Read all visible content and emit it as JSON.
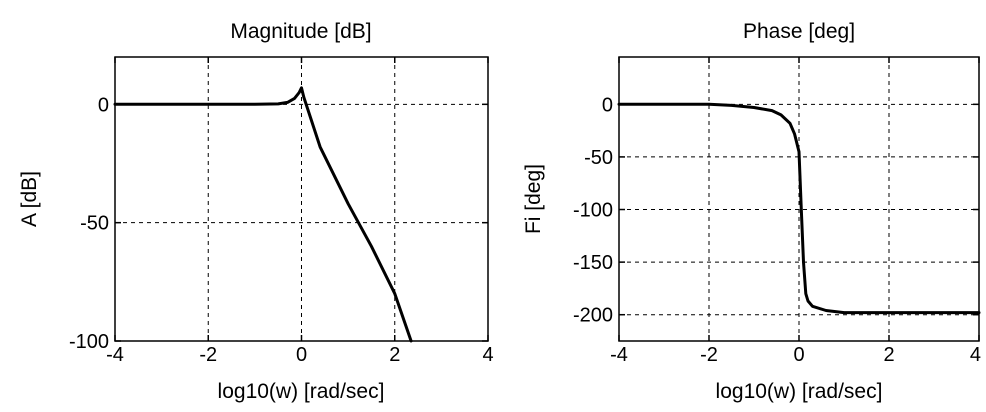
{
  "chart_data": [
    {
      "type": "line",
      "title": "Magnitude [dB]",
      "xlabel": "log10(w) [rad/sec]",
      "ylabel": "A [dB]",
      "xlim": [
        -4,
        4
      ],
      "ylim": [
        -100,
        20
      ],
      "xticks": [
        -4,
        -2,
        0,
        2,
        4
      ],
      "yticks": [
        0,
        -50,
        -100
      ],
      "grid": true,
      "series": [
        {
          "x": [
            -4,
            -2,
            -1,
            -0.5,
            -0.3,
            -0.15,
            -0.05,
            0,
            0.05,
            0.2,
            0.4,
            0.7,
            1.0,
            1.5,
            2.0,
            2.35
          ],
          "y": [
            0,
            0,
            0,
            0.2,
            0.8,
            2.5,
            5,
            7,
            3,
            -6,
            -18,
            -30,
            -42,
            -60,
            -80,
            -100
          ]
        }
      ]
    },
    {
      "type": "line",
      "title": "Phase [deg]",
      "xlabel": "log10(w) [rad/sec]",
      "ylabel": "Fi [deg]",
      "xlim": [
        -4,
        4
      ],
      "ylim": [
        -225,
        45
      ],
      "xticks": [
        -4,
        -2,
        0,
        2,
        4
      ],
      "yticks": [
        0,
        -50,
        -100,
        -150,
        -200
      ],
      "grid": true,
      "series": [
        {
          "x": [
            -4,
            -2,
            -1.5,
            -1,
            -0.6,
            -0.4,
            -0.2,
            -0.1,
            0,
            0.05,
            0.1,
            0.15,
            0.2,
            0.3,
            0.6,
            1.0,
            2,
            4
          ],
          "y": [
            0,
            0,
            -1,
            -3,
            -6,
            -10,
            -18,
            -28,
            -45,
            -100,
            -150,
            -180,
            -187,
            -192,
            -196,
            -198,
            -198,
            -198
          ]
        }
      ]
    }
  ]
}
